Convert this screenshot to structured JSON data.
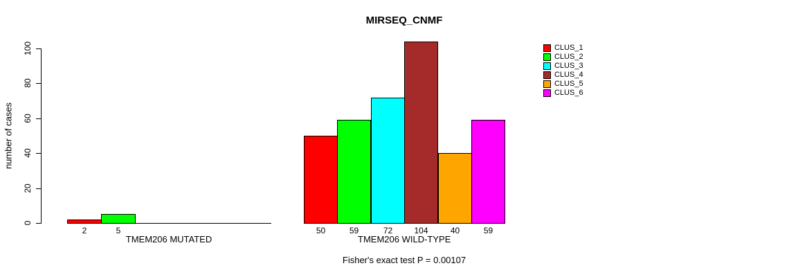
{
  "chart_data": {
    "type": "bar",
    "title": "MIRSEQ_CNMF",
    "ylabel": "number of cases",
    "xlabel": "",
    "ylim": [
      0,
      100
    ],
    "yticks": [
      0,
      20,
      40,
      60,
      80,
      100
    ],
    "grid": false,
    "y_tick_label_rotation": "vertical",
    "legend_position": "right-outside",
    "legend": [
      {
        "label": "CLUS_1",
        "color": "#FF0000"
      },
      {
        "label": "CLUS_2",
        "color": "#00FF00"
      },
      {
        "label": "CLUS_3",
        "color": "#00FFFF"
      },
      {
        "label": "CLUS_4",
        "color": "#A52A2A"
      },
      {
        "label": "CLUS_5",
        "color": "#FFA500"
      },
      {
        "label": "CLUS_6",
        "color": "#FF00FF"
      }
    ],
    "categories": [
      "TMEM206 MUTATED",
      "TMEM206 WILD-TYPE"
    ],
    "series": [
      {
        "name": "CLUS_1",
        "values": [
          2,
          50
        ]
      },
      {
        "name": "CLUS_2",
        "values": [
          5,
          59
        ]
      },
      {
        "name": "CLUS_3",
        "values": [
          0,
          72
        ]
      },
      {
        "name": "CLUS_4",
        "values": [
          0,
          104
        ]
      },
      {
        "name": "CLUS_5",
        "values": [
          0,
          40
        ]
      },
      {
        "name": "CLUS_6",
        "values": [
          0,
          59
        ]
      }
    ],
    "groups": [
      {
        "label": "TMEM206 MUTATED",
        "values": [
          2,
          5,
          0,
          0,
          0,
          0
        ],
        "bar_labels": [
          "2",
          "5",
          "",
          "",
          "",
          ""
        ]
      },
      {
        "label": "TMEM206 WILD-TYPE",
        "values": [
          50,
          59,
          72,
          104,
          40,
          59
        ],
        "bar_labels": [
          "50",
          "59",
          "72",
          "104",
          "40",
          "59"
        ]
      }
    ],
    "footnote": "Fisher's exact test P = 0.00107"
  }
}
